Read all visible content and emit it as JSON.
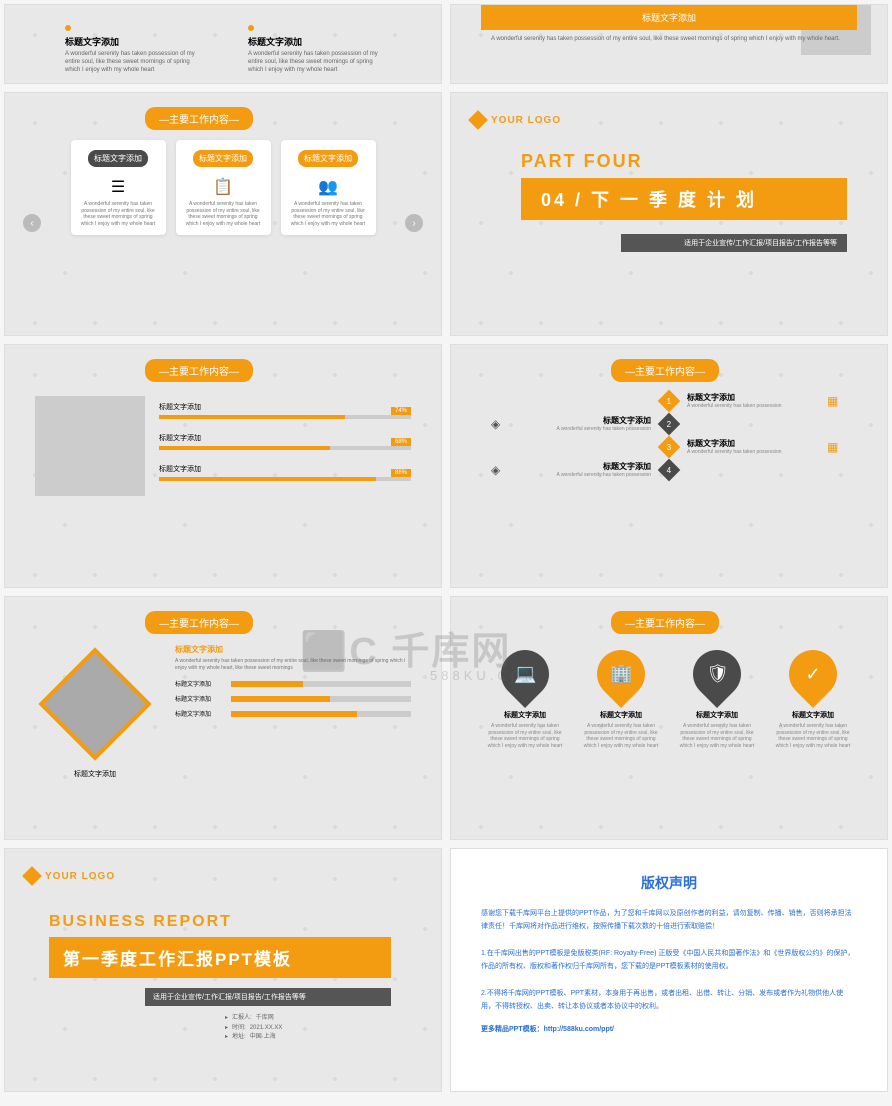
{
  "colors": {
    "accent": "#f39c12",
    "dark": "#4a4a4a",
    "text": "#666"
  },
  "common": {
    "header_badge": "—主要工作内容—",
    "title_placeholder": "标题文字添加",
    "desc_short": "A wonderful serenity has taken possession",
    "desc_long": "A wonderful serenity has taken possession of my entire soul, like these sweet mornings of spring which I enjoy with my whole heart.",
    "desc_med": "A wonderful serenity has taken possession of my entire soul, like these sweet mornings of spring which I enjoy with my whole heart"
  },
  "s2": {
    "bar_text": "标题文字添加",
    "desc": "A wonderful serenity has taken possession of my entire soul, like these sweet mornings of spring which I enjoy with my whole heart."
  },
  "s3": {
    "cards": [
      {
        "title": "标题文字添加",
        "icon": "☰",
        "dark": true
      },
      {
        "title": "标题文字添加",
        "icon": "📋",
        "dark": false
      },
      {
        "title": "标题文字添加",
        "icon": "👥",
        "dark": false
      }
    ]
  },
  "s4": {
    "logo": "YOUR LOGO",
    "part": "PART FOUR",
    "title": "04 / 下 一 季 度 计 划",
    "sub": "适用于企业宣传/工作汇报/项目报告/工作报告等等"
  },
  "s5": {
    "bars": [
      {
        "label": "标题文字添加",
        "pct": 74
      },
      {
        "label": "标题文字添加",
        "pct": 68
      },
      {
        "label": "标题文字添加",
        "pct": 86
      }
    ]
  },
  "s6": {
    "rows": [
      {
        "n": "1",
        "orange": true,
        "side": "right"
      },
      {
        "n": "2",
        "orange": false,
        "side": "left"
      },
      {
        "n": "3",
        "orange": true,
        "side": "right"
      },
      {
        "n": "4",
        "orange": false,
        "side": "left"
      }
    ]
  },
  "s7": {
    "caption": "标题文字添加",
    "rtitle": "标题文字添加",
    "rdesc": "A wonderful serenity has taken possession of my entire soul, like these sweet mornings of spring which I enjoy with my whole heart, like these sweet mornings",
    "bars": [
      {
        "label": "标题文字添加",
        "pct": 40
      },
      {
        "label": "标题文字添加",
        "pct": 55
      },
      {
        "label": "标题文字添加",
        "pct": 70
      }
    ]
  },
  "s8": {
    "items": [
      {
        "icon": "💻",
        "orange": false
      },
      {
        "icon": "🏢",
        "orange": true
      },
      {
        "icon": "🛡",
        "orange": false
      },
      {
        "icon": "✓",
        "orange": true
      }
    ]
  },
  "s9": {
    "logo": "YOUR LOGO",
    "biz": "BUSINESS REPORT",
    "title": "第一季度工作汇报PPT模板",
    "sub": "适用于企业宣传/工作汇报/项目报告/工作报告等等",
    "meta": [
      {
        "k": "汇报人:",
        "v": "千库网"
      },
      {
        "k": "时间:",
        "v": "2021.XX.XX"
      },
      {
        "k": "地址:",
        "v": "中国·上海"
      }
    ]
  },
  "s10": {
    "title": "版权声明",
    "p1": "感谢您下载千库网平台上提供的PPT作品，为了您和千库网以及原创作者的利益，请勿复制、传播、销售，否则将承担法律责任！千库网将对作品进行维权，按照传播下载次数的十倍进行索取赔偿！",
    "p2": "1.在千库网出售的PPT模板是免版税类(RF: Royalty-Free) 正版受《中国人民共和国著作法》和《世界版权公约》的保护，作品的所有权、版权和著作权归千库网所有，您下载的是PPT模板素材的使用权。",
    "p3": "2.不得将千库网的PPT模板、PPT素材，本身用于再出售，或者出租、出借、转让、分销、发布或者作为礼物供他人使用，不得转授权、出卖、转让本协议或者本协议中的权利。",
    "link": "更多精品PPT模板：http://588ku.com/ppt/"
  },
  "watermark": {
    "main": "千库网",
    "sub": "588KU.COM",
    "logo": "⬛C"
  }
}
